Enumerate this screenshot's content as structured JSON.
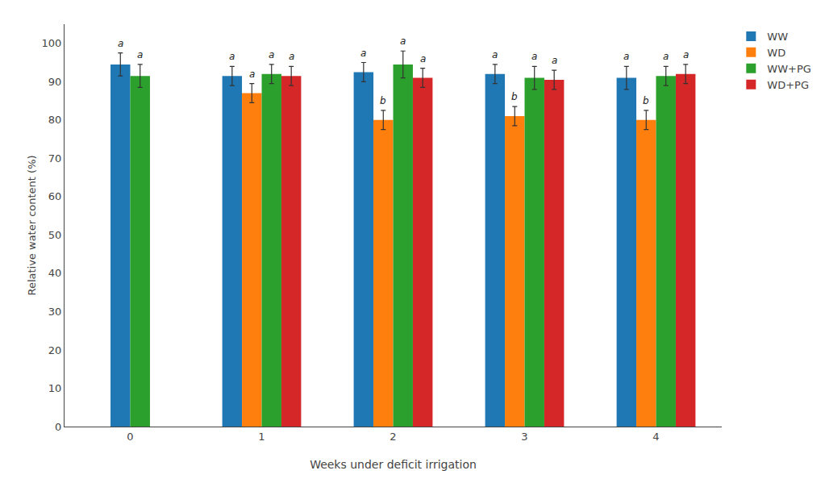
{
  "chart_data": {
    "type": "bar",
    "xlabel": "Weeks under deficit irrigation",
    "ylabel": "Relative water content (%)",
    "categories": [
      "0",
      "1",
      "2",
      "3",
      "4"
    ],
    "series": [
      {
        "name": "WW",
        "values": [
          94.5,
          91.5,
          92.5,
          92.0,
          91.0
        ],
        "errors": [
          3.0,
          2.5,
          2.5,
          2.5,
          3.0
        ],
        "letters": [
          "a",
          "a",
          "a",
          "a",
          "a"
        ]
      },
      {
        "name": "WD",
        "values": [
          null,
          87.0,
          80.0,
          81.0,
          80.0
        ],
        "errors": [
          null,
          2.5,
          2.5,
          2.5,
          2.5
        ],
        "letters": [
          null,
          "a",
          "b",
          "b",
          "b"
        ]
      },
      {
        "name": "WW+PG",
        "values": [
          91.5,
          92.0,
          94.5,
          91.0,
          91.5
        ],
        "errors": [
          3.0,
          2.5,
          3.5,
          3.0,
          2.5
        ],
        "letters": [
          "a",
          "a",
          "a",
          "a",
          "a"
        ]
      },
      {
        "name": "WD+PG",
        "values": [
          null,
          91.5,
          91.0,
          90.5,
          92.0
        ],
        "errors": [
          null,
          2.5,
          2.5,
          2.5,
          2.5
        ],
        "letters": [
          null,
          "a",
          "a",
          "a",
          "a"
        ]
      }
    ],
    "ylim": [
      0,
      105
    ],
    "yticks": [
      0,
      10,
      20,
      30,
      40,
      50,
      60,
      70,
      80,
      90,
      100
    ],
    "grid": false,
    "legend": "right"
  }
}
